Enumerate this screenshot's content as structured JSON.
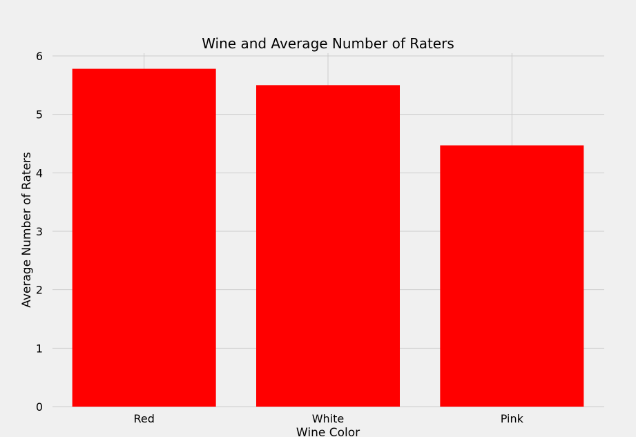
{
  "chart_data": {
    "type": "bar",
    "title": "Wine and Average Number of Raters",
    "xlabel": "Wine Color",
    "ylabel": "Average Number of Raters",
    "categories": [
      "Red",
      "White",
      "Pink"
    ],
    "values": [
      5.78,
      5.5,
      4.47
    ],
    "ylim": [
      0,
      6.05
    ],
    "yticks": [
      0,
      1,
      2,
      3,
      4,
      5,
      6
    ],
    "grid": true,
    "bar_color": "#ff0000",
    "background_color": "#f0f0f0",
    "grid_color": "#cbcbcb"
  }
}
